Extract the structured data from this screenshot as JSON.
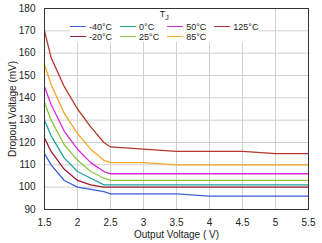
{
  "chart_data": {
    "type": "line",
    "x_label": "Output Voltage ( V)",
    "y_label": "Dropout Voltage (mV)",
    "legend_title": {
      "main": "T",
      "sub": "J"
    },
    "legend": "top",
    "grid": true,
    "x": [
      1.5,
      1.6,
      1.8,
      2.0,
      2.2,
      2.4,
      2.5,
      3.0,
      3.5,
      4.0,
      4.5,
      5.0,
      5.5
    ],
    "xlim": [
      1.5,
      5.5
    ],
    "xticks": [
      1.5,
      2,
      2.5,
      3,
      3.5,
      4,
      4.5,
      5,
      5.5
    ],
    "ylim": [
      90,
      180
    ],
    "yticks": [
      90,
      100,
      110,
      120,
      130,
      140,
      150,
      160,
      170,
      180
    ],
    "series": [
      {
        "name": "-40°C",
        "color": "#3a5fd9",
        "values": [
          115,
          110,
          103,
          100,
          99,
          98,
          97,
          97,
          97,
          96,
          96,
          96,
          96
        ]
      },
      {
        "name": "-20°C",
        "color": "#9e1b32",
        "values": [
          122,
          116,
          108,
          103,
          101,
          100,
          100,
          100,
          100,
          100,
          100,
          100,
          100
        ]
      },
      {
        "name": "0°C",
        "color": "#1aa59a",
        "values": [
          130,
          123,
          113,
          107,
          104,
          101,
          101,
          101,
          101,
          101,
          101,
          101,
          101
        ]
      },
      {
        "name": "25°C",
        "color": "#8cc63f",
        "values": [
          138,
          130,
          119,
          112,
          107,
          104,
          103,
          103,
          103,
          103,
          103,
          103,
          103
        ]
      },
      {
        "name": "50°C",
        "color": "#d62ad6",
        "values": [
          145,
          137,
          125,
          117,
          111,
          107,
          106,
          106,
          106,
          106,
          106,
          106,
          106
        ]
      },
      {
        "name": "85°C",
        "color": "#f5a623",
        "values": [
          155,
          146,
          133,
          124,
          117,
          112,
          111,
          111,
          110,
          110,
          110,
          110,
          110
        ]
      },
      {
        "name": "125°C",
        "color": "#b5382a",
        "values": [
          170,
          158,
          145,
          135,
          127,
          120,
          118,
          117,
          116,
          116,
          116,
          115,
          115
        ]
      }
    ]
  }
}
